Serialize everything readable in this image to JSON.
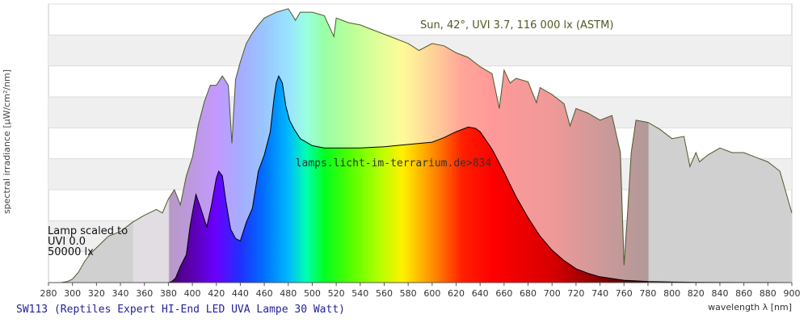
{
  "footer": {
    "title": "SW113 (Reptiles Expert HI-End LED UVA Lampe 30 Watt)"
  },
  "chart_data": {
    "type": "area",
    "xlabel": "wavelength λ [nm]",
    "ylabel": "spectral irradiance [µW/cm²/nm]",
    "xlim": [
      280,
      900
    ],
    "x_ticks": [
      280,
      300,
      320,
      340,
      360,
      380,
      400,
      420,
      440,
      460,
      480,
      500,
      520,
      540,
      560,
      580,
      600,
      620,
      640,
      660,
      680,
      700,
      720,
      740,
      760,
      780,
      800,
      820,
      840,
      860,
      880,
      900
    ],
    "grid": true,
    "annotations": {
      "sun": "Sun, 42°, UVI 3.7, 116 000 lx (ASTM)",
      "source": "lamps.licht-im-terrarium.de>834",
      "lamp_lines": [
        "Lamp scaled to",
        "UVI 0.0",
        "50000 lx"
      ]
    },
    "series": [
      {
        "name": "Sun, 42°, UVI 3.7, 116 000 lx (ASTM)",
        "x": [
          290,
          296,
          300,
          305,
          310,
          315,
          320,
          330,
          340,
          350,
          360,
          370,
          375,
          380,
          385,
          390,
          395,
          400,
          405,
          410,
          415,
          420,
          425,
          430,
          433,
          436,
          440,
          445,
          450,
          455,
          460,
          470,
          480,
          486,
          490,
          500,
          510,
          518,
          520,
          530,
          540,
          550,
          560,
          580,
          589,
          600,
          610,
          620,
          630,
          640,
          650,
          656,
          660,
          665,
          670,
          680,
          687,
          690,
          700,
          710,
          715,
          720,
          730,
          740,
          750,
          757,
          760,
          763,
          766,
          770,
          780,
          790,
          800,
          810,
          815,
          820,
          823,
          830,
          840,
          850,
          860,
          870,
          880,
          890,
          900
        ],
        "y": [
          0,
          1,
          3,
          9,
          18,
          25,
          30,
          40,
          44,
          52,
          58,
          63,
          60,
          72,
          80,
          67,
          92,
          108,
          136,
          156,
          170,
          170,
          178,
          170,
          120,
          175,
          190,
          206,
          215,
          222,
          228,
          233,
          236,
          226,
          233,
          233,
          230,
          212,
          228,
          224,
          222,
          218,
          214,
          206,
          200,
          206,
          204,
          198,
          194,
          186,
          180,
          150,
          183,
          172,
          176,
          173,
          155,
          168,
          162,
          154,
          135,
          150,
          146,
          140,
          144,
          112,
          15,
          60,
          112,
          140,
          138,
          132,
          124,
          126,
          100,
          112,
          104,
          110,
          116,
          112,
          112,
          108,
          104,
          96,
          60
        ]
      },
      {
        "name": "lamp",
        "x": [
          380,
          383,
          386,
          390,
          395,
          398,
          400,
          403,
          407,
          412,
          416,
          420,
          422,
          425,
          428,
          432,
          436,
          440,
          445,
          450,
          455,
          460,
          465,
          468,
          470,
          472,
          475,
          478,
          481,
          485,
          490,
          500,
          510,
          520,
          540,
          560,
          580,
          600,
          610,
          620,
          630,
          636,
          640,
          650,
          660,
          670,
          680,
          690,
          700,
          710,
          720,
          730,
          740,
          760,
          780,
          800,
          820,
          840,
          860,
          880,
          900
        ],
        "y": [
          0,
          1,
          4,
          14,
          24,
          48,
          60,
          76,
          64,
          48,
          67,
          90,
          96,
          92,
          70,
          46,
          38,
          36,
          52,
          64,
          96,
          110,
          130,
          158,
          172,
          178,
          172,
          152,
          140,
          132,
          124,
          118,
          116,
          116,
          116,
          117,
          119,
          121,
          125,
          130,
          134,
          133,
          130,
          115,
          95,
          74,
          56,
          40,
          28,
          19,
          12,
          8,
          5,
          2,
          1,
          0.5,
          0.3,
          0.2,
          0.1,
          0.05,
          0
        ]
      }
    ]
  }
}
